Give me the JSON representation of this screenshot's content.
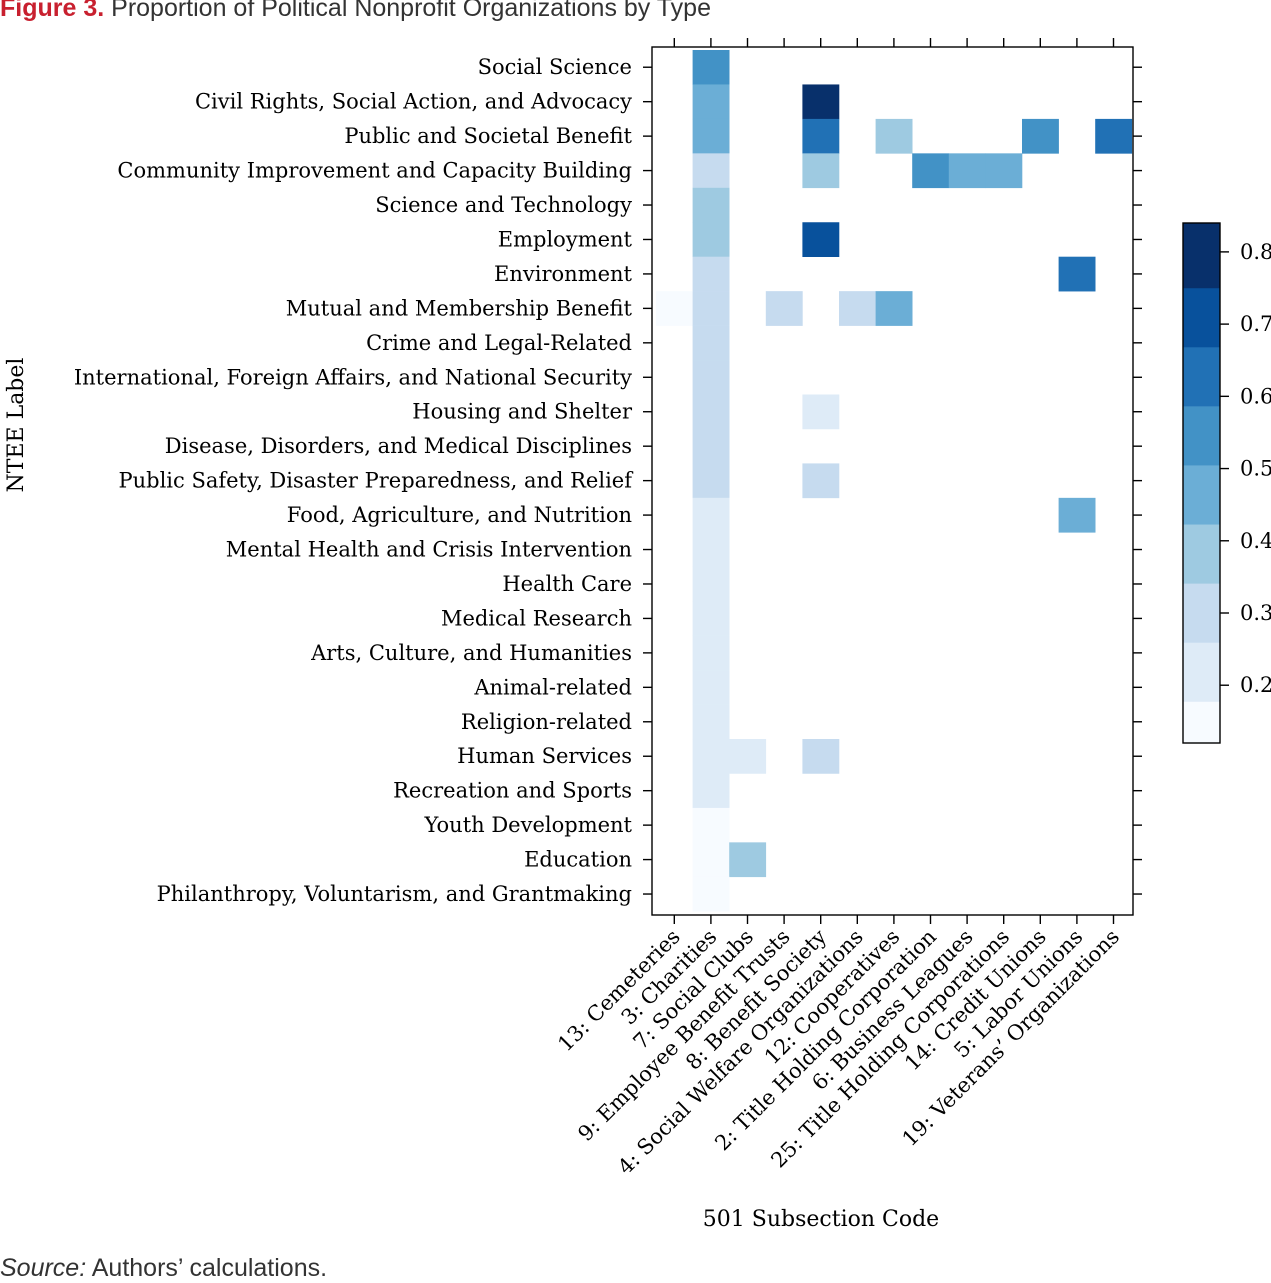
{
  "figure": {
    "label": "Figure 3.",
    "title": "Proportion of Political Nonprofit Organizations by Type",
    "source_label": "Source:",
    "source_text": "Authors’ calculations."
  },
  "chart_data": {
    "type": "heatmap",
    "xlabel": "501 Subsection Code",
    "ylabel": "NTEE Label",
    "x_categories": [
      "13: Cemeteries",
      "3: Charities",
      "7: Social Clubs",
      "9: Employee Benefit Trusts",
      "8: Benefit Society",
      "4: Social Welfare Organizations",
      "12: Cooperatives",
      "2: Title Holding Corporation",
      "6: Business Leagues",
      "25: Title Holding Corporations",
      "14: Credit Unions",
      "5: Labor Unions",
      "19: Veterans’ Organizations"
    ],
    "y_categories": [
      "Social Science",
      "Civil Rights, Social Action, and Advocacy",
      "Public  and Societal Benefit",
      "Community Improvement and Capacity Building",
      "Science and Technology",
      "Employment",
      "Environment",
      "Mutual and Membership Benefit",
      "Crime and Legal-Related",
      "International, Foreign Affairs, and National Security",
      "Housing and Shelter",
      "Disease, Disorders, and Medical Disciplines",
      "Public Safety, Disaster Preparedness, and Relief",
      "Food, Agriculture, and Nutrition",
      "Mental Health and Crisis Intervention",
      "Health Care",
      "Medical Research",
      "Arts, Culture, and Humanities",
      "Animal-related",
      "Religion-related",
      "Human Services",
      "Recreation and Sports",
      "Youth Development",
      "Education",
      "Philanthropy, Voluntarism, and Grantmaking"
    ],
    "z_range": [
      0.12,
      0.86
    ],
    "colorbar_ticks": [
      0.2,
      0.3,
      0.4,
      0.5,
      0.6,
      0.7,
      0.8
    ],
    "colorbar_ticklabels": [
      "0.2",
      "0.3",
      "0.4",
      "0.5",
      "0.6",
      "0.7",
      "0.8"
    ],
    "colorbar_breaks": [
      0.12,
      0.1775,
      0.2593,
      0.3411,
      0.4229,
      0.5047,
      0.5865,
      0.6683,
      0.7501,
      0.84
    ],
    "colors": [
      "#f7fbff",
      "#deebf7",
      "#c6dbef",
      "#9ecae1",
      "#6baed6",
      "#4292c6",
      "#2171b5",
      "#08519c",
      "#08306b"
    ],
    "grid": false,
    "legend_position": "right",
    "cells": [
      {
        "row": 0,
        "col": 1,
        "value": 0.57
      },
      {
        "row": 1,
        "col": 1,
        "value": 0.47
      },
      {
        "row": 1,
        "col": 4,
        "value": 0.82
      },
      {
        "row": 2,
        "col": 1,
        "value": 0.47
      },
      {
        "row": 2,
        "col": 4,
        "value": 0.65
      },
      {
        "row": 2,
        "col": 6,
        "value": 0.4
      },
      {
        "row": 2,
        "col": 10,
        "value": 0.57
      },
      {
        "row": 2,
        "col": 12,
        "value": 0.65
      },
      {
        "row": 3,
        "col": 1,
        "value": 0.3
      },
      {
        "row": 3,
        "col": 4,
        "value": 0.4
      },
      {
        "row": 3,
        "col": 7,
        "value": 0.57
      },
      {
        "row": 3,
        "col": 8,
        "value": 0.47
      },
      {
        "row": 3,
        "col": 9,
        "value": 0.47
      },
      {
        "row": 4,
        "col": 1,
        "value": 0.4
      },
      {
        "row": 5,
        "col": 1,
        "value": 0.4
      },
      {
        "row": 5,
        "col": 4,
        "value": 0.72
      },
      {
        "row": 6,
        "col": 1,
        "value": 0.3
      },
      {
        "row": 6,
        "col": 11,
        "value": 0.65
      },
      {
        "row": 7,
        "col": 0,
        "value": 0.15
      },
      {
        "row": 7,
        "col": 1,
        "value": 0.3
      },
      {
        "row": 7,
        "col": 3,
        "value": 0.3
      },
      {
        "row": 7,
        "col": 5,
        "value": 0.3
      },
      {
        "row": 7,
        "col": 6,
        "value": 0.5
      },
      {
        "row": 8,
        "col": 1,
        "value": 0.3
      },
      {
        "row": 9,
        "col": 1,
        "value": 0.3
      },
      {
        "row": 10,
        "col": 1,
        "value": 0.3
      },
      {
        "row": 10,
        "col": 4,
        "value": 0.22
      },
      {
        "row": 11,
        "col": 1,
        "value": 0.3
      },
      {
        "row": 12,
        "col": 1,
        "value": 0.3
      },
      {
        "row": 12,
        "col": 4,
        "value": 0.3
      },
      {
        "row": 13,
        "col": 1,
        "value": 0.22
      },
      {
        "row": 13,
        "col": 11,
        "value": 0.5
      },
      {
        "row": 14,
        "col": 1,
        "value": 0.22
      },
      {
        "row": 15,
        "col": 1,
        "value": 0.22
      },
      {
        "row": 16,
        "col": 1,
        "value": 0.22
      },
      {
        "row": 17,
        "col": 1,
        "value": 0.22
      },
      {
        "row": 18,
        "col": 1,
        "value": 0.22
      },
      {
        "row": 19,
        "col": 1,
        "value": 0.22
      },
      {
        "row": 20,
        "col": 1,
        "value": 0.22
      },
      {
        "row": 20,
        "col": 2,
        "value": 0.22
      },
      {
        "row": 20,
        "col": 4,
        "value": 0.3
      },
      {
        "row": 21,
        "col": 1,
        "value": 0.22
      },
      {
        "row": 22,
        "col": 1,
        "value": 0.15
      },
      {
        "row": 23,
        "col": 1,
        "value": 0.15
      },
      {
        "row": 23,
        "col": 2,
        "value": 0.4
      },
      {
        "row": 24,
        "col": 1,
        "value": 0.15
      }
    ]
  }
}
